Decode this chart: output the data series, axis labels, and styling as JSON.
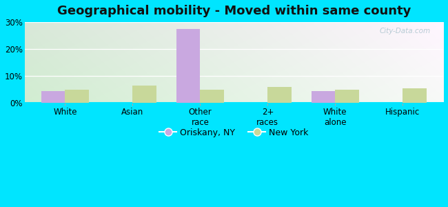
{
  "title": "Geographical mobility - Moved within same county",
  "categories": [
    "White",
    "Asian",
    "Other\nrace",
    "2+\nraces",
    "White\nalone",
    "Hispanic"
  ],
  "oriskany_values": [
    4.5,
    0,
    27.5,
    0,
    4.5,
    0
  ],
  "newyork_values": [
    5.0,
    6.5,
    5.0,
    6.0,
    5.0,
    5.5
  ],
  "oriskany_color": "#c9a8e0",
  "newyork_color": "#c8d89a",
  "ylim": [
    0,
    30
  ],
  "yticks": [
    0,
    10,
    20,
    30
  ],
  "ytick_labels": [
    "0%",
    "10%",
    "20%",
    "30%"
  ],
  "legend_oriskany": "Oriskany, NY",
  "legend_newyork": "New York",
  "bar_width": 0.35,
  "outer_background": "#00e5ff",
  "title_fontsize": 13,
  "watermark": "City-Data.com"
}
